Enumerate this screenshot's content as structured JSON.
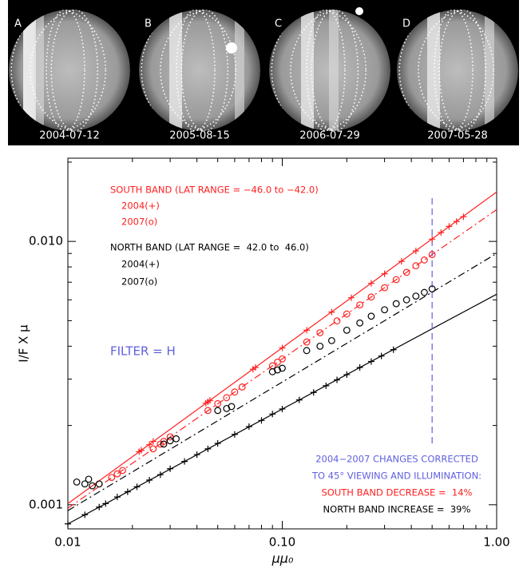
{
  "figure": {
    "panels": [
      {
        "label": "A",
        "date": "2004-07-12"
      },
      {
        "label": "B",
        "date": "2005-08-15"
      },
      {
        "label": "C",
        "date": "2006-07-29"
      },
      {
        "label": "D",
        "date": "2007-05-28"
      }
    ]
  },
  "chart_data": {
    "type": "scatter",
    "xlabel": "μμ₀",
    "ylabel": "I/F X μ",
    "xscale": "log",
    "yscale": "log",
    "xlim": [
      0.01,
      1
    ],
    "ylim": [
      0.00081,
      0.0207
    ],
    "xticks": [
      0.01,
      {
        "value": 0.1,
        "label": "0.10"
      },
      {
        "value": 1,
        "label": "1.00"
      }
    ],
    "yticks": [
      0.001,
      {
        "value": 0.01,
        "label": "0.010"
      }
    ],
    "xminor": [
      0.02,
      0.03,
      0.04,
      0.05,
      0.06,
      0.07,
      0.08,
      0.09,
      0.2,
      0.3,
      0.4,
      0.5,
      0.6,
      0.7,
      0.8,
      0.9
    ],
    "yminor": [
      0.002,
      0.003,
      0.004,
      0.005,
      0.006,
      0.007,
      0.008,
      0.009,
      0.02
    ],
    "series": [
      {
        "color": "#ff2020",
        "marker": "+",
        "x": [
          0.0215,
          0.022,
          0.024,
          0.025,
          0.044,
          0.045,
          0.046,
          0.073,
          0.075,
          0.1,
          0.13,
          0.17,
          0.21,
          0.26,
          0.3,
          0.36,
          0.42,
          0.5,
          0.55,
          0.6,
          0.65,
          0.7
        ],
        "values": [
          0.00159,
          0.00161,
          0.00169,
          0.00174,
          0.00243,
          0.00246,
          0.00249,
          0.00327,
          0.00332,
          0.00394,
          0.0046,
          0.00539,
          0.00611,
          0.00693,
          0.00754,
          0.0084,
          0.0092,
          0.0102,
          0.0108,
          0.0114,
          0.0119,
          0.0124
        ]
      },
      {
        "color": "#ff2020",
        "marker": "o",
        "x": [
          0.016,
          0.017,
          0.018,
          0.025,
          0.027,
          0.028,
          0.03,
          0.045,
          0.05,
          0.055,
          0.06,
          0.065,
          0.09,
          0.095,
          0.1,
          0.13,
          0.15,
          0.18,
          0.2,
          0.23,
          0.26,
          0.3,
          0.34,
          0.38,
          0.42,
          0.46,
          0.5
        ],
        "values": [
          0.00127,
          0.00131,
          0.00135,
          0.00163,
          0.0017,
          0.00174,
          0.00181,
          0.00228,
          0.00242,
          0.00255,
          0.00268,
          0.0028,
          0.00337,
          0.00348,
          0.00358,
          0.00415,
          0.0045,
          0.00499,
          0.0053,
          0.00574,
          0.00615,
          0.00667,
          0.00716,
          0.00763,
          0.00808,
          0.0085,
          0.00891
        ]
      },
      {
        "color": "#000000",
        "marker": "+",
        "x": [
          0.01,
          0.012,
          0.014,
          0.015,
          0.017,
          0.019,
          0.021,
          0.024,
          0.027,
          0.03,
          0.035,
          0.04,
          0.045,
          0.05,
          0.06,
          0.07,
          0.08,
          0.09,
          0.1,
          0.12,
          0.14,
          0.16,
          0.18,
          0.2,
          0.23,
          0.26,
          0.29,
          0.33
        ],
        "values": [
          0.000846,
          0.000916,
          0.00098,
          0.00101,
          0.00107,
          0.00112,
          0.00117,
          0.00124,
          0.0013,
          0.00137,
          0.00146,
          0.00155,
          0.00163,
          0.00171,
          0.00185,
          0.00198,
          0.00209,
          0.00221,
          0.00231,
          0.0025,
          0.00267,
          0.00283,
          0.00298,
          0.00312,
          0.00332,
          0.0035,
          0.00367,
          0.00388
        ]
      },
      {
        "color": "#000000",
        "marker": "o",
        "x": [
          0.011,
          0.012,
          0.0125,
          0.013,
          0.014,
          0.028,
          0.03,
          0.032,
          0.05,
          0.055,
          0.058,
          0.09,
          0.095,
          0.1,
          0.13,
          0.15,
          0.17,
          0.2,
          0.23,
          0.26,
          0.3,
          0.34,
          0.38,
          0.42,
          0.46,
          0.5
        ],
        "values": [
          0.00122,
          0.0012,
          0.00125,
          0.00118,
          0.0012,
          0.0017,
          0.00175,
          0.00178,
          0.00228,
          0.00232,
          0.00236,
          0.0032,
          0.00325,
          0.0033,
          0.00385,
          0.004,
          0.0042,
          0.0046,
          0.0049,
          0.0052,
          0.0055,
          0.0058,
          0.006,
          0.0062,
          0.0064,
          0.0066
        ]
      }
    ],
    "fits": [
      {
        "color": "#ff2020",
        "dash": "solid",
        "x": [
          0.01,
          1
        ],
        "values": [
          0.00101,
          0.0154
        ]
      },
      {
        "color": "#ff2020",
        "dash": "dashdot",
        "x": [
          0.01,
          1
        ],
        "values": [
          0.00097,
          0.0132
        ]
      },
      {
        "color": "#000000",
        "dash": "solid",
        "x": [
          0.01,
          1
        ],
        "values": [
          0.000846,
          0.0063
        ]
      },
      {
        "color": "#000000",
        "dash": "dashdot",
        "x": [
          0.01,
          1
        ],
        "values": [
          0.00095,
          0.009
        ]
      }
    ],
    "vline": {
      "color": "#6060e0",
      "dash": "dash",
      "x": 0.5,
      "values": [
        0.00171,
        0.0146
      ]
    },
    "annotations": [
      {
        "text": "SOUTH BAND (LAT RANGE = −46.0 to −42.0)",
        "color": "#ff2020"
      },
      {
        "text": "2004(+)",
        "color": "#ff2020"
      },
      {
        "text": "2007(o)",
        "color": "#ff2020"
      },
      {
        "text": "NORTH BAND (LAT RANGE =  42.0 to  46.0)",
        "color": "#000000"
      },
      {
        "text": "2004(+)",
        "color": "#000000"
      },
      {
        "text": "2007(o)",
        "color": "#000000"
      },
      {
        "text": "FILTER = H",
        "color": "#6060e0"
      },
      {
        "text": "2004−2007 CHANGES CORRECTED",
        "color": "#6060e0"
      },
      {
        "text": "TO 45° VIEWING AND ILLUMINATION:",
        "color": "#6060e0"
      },
      {
        "text": "SOUTH BAND DECREASE =  14%",
        "color": "#ff2020"
      },
      {
        "text": "NORTH BAND INCREASE =  39%",
        "color": "#000000"
      }
    ]
  }
}
